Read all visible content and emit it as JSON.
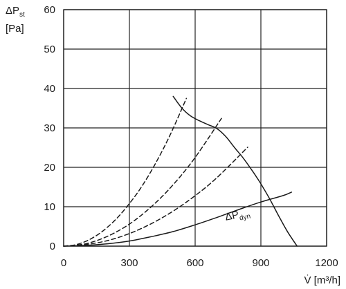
{
  "chart_data": {
    "type": "line",
    "ylabel": {
      "main": "ΔP",
      "sub": "st",
      "unit": "[Pa]"
    },
    "xlabel": "V̇ [m³/h]",
    "xlim": [
      0,
      1200
    ],
    "ylim": [
      0,
      60
    ],
    "xticks": [
      "0",
      "300",
      "600",
      "900",
      "1200"
    ],
    "yticks": [
      "0",
      "10",
      "20",
      "30",
      "40",
      "50",
      "60"
    ],
    "grid": true,
    "annotation": {
      "main": "ΔP",
      "sub": "dyn",
      "at": [
        740,
        6.5
      ]
    },
    "series": [
      {
        "style": "solid",
        "x": [
          500,
          540,
          580,
          620,
          660,
          700,
          740,
          780,
          820,
          860,
          900,
          940,
          980,
          1020,
          1065
        ],
        "y": [
          38.0,
          35.0,
          33.0,
          31.8,
          30.8,
          29.8,
          27.8,
          25.0,
          22.3,
          19.2,
          15.8,
          12.0,
          7.8,
          3.8,
          0.0
        ]
      },
      {
        "style": "solid",
        "x": [
          0,
          100,
          200,
          300,
          400,
          500,
          600,
          700,
          800,
          900,
          1000,
          1040
        ],
        "y": [
          0.0,
          0.2,
          0.6,
          1.3,
          2.4,
          3.7,
          5.4,
          7.3,
          9.3,
          11.2,
          12.8,
          13.7
        ]
      },
      {
        "style": "dashed",
        "x": [
          0,
          50,
          100,
          150,
          200,
          250,
          300,
          350,
          400,
          450,
          500,
          560
        ],
        "y": [
          0,
          0.3,
          1.2,
          2.7,
          4.8,
          7.5,
          10.8,
          14.6,
          19.1,
          24.2,
          29.9,
          37.5
        ]
      },
      {
        "style": "dashed",
        "x": [
          0,
          100,
          200,
          300,
          400,
          500,
          600,
          720
        ],
        "y": [
          0,
          0.6,
          2.5,
          5.6,
          10.0,
          15.6,
          22.5,
          32.4
        ]
      },
      {
        "style": "dashed",
        "x": [
          0,
          100,
          200,
          300,
          400,
          500,
          600,
          700,
          840
        ],
        "y": [
          0,
          0.4,
          1.4,
          3.2,
          5.7,
          8.9,
          12.8,
          17.4,
          25.1
        ]
      }
    ]
  }
}
